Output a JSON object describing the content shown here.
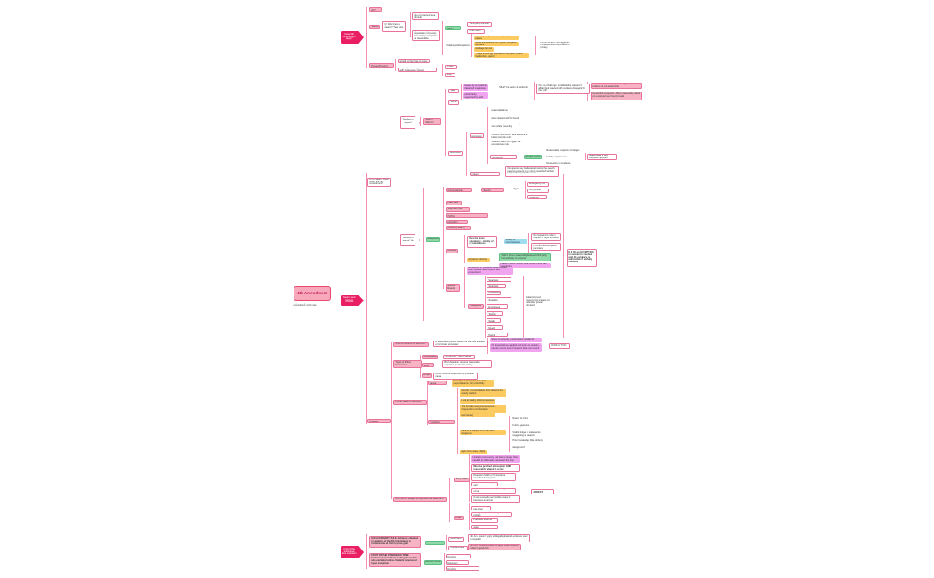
{
  "nodes": [
    {
      "text": "4th Amendment",
      "style": "root"
    },
    {
      "text": "Prepared by the ELOE 4th Amendment mind map",
      "style": "plain"
    },
    {
      "text": "Does 4th Amendment apply?",
      "style": "arrow"
    },
    {
      "text": "Search and Seizure Process",
      "style": "arrow"
    },
    {
      "text": "Fruit of the poisonous tree exclusion",
      "style": "arrow"
    },
    {
      "text": "Gov't Act?",
      "style": "pink"
    },
    {
      "text": "Search?",
      "style": "pink"
    },
    {
      "text": "Q: Was there a search? Two tests",
      "style": "white"
    },
    {
      "text": "1) Physical trespass into a protected area (Jones)",
      "style": "white"
    },
    {
      "text": "2) REP - subjective expectation of privacy that society recognizes as reasonable",
      "style": "white"
    },
    {
      "text": "Katz test (REP)",
      "style": "green"
    },
    {
      "text": "Third-party doctrine",
      "style": "white"
    },
    {
      "text": "Open fields",
      "style": "white"
    },
    {
      "text": "Challenges/Exceptions",
      "style": "plain"
    },
    {
      "text": "Sniffs by drug-detection dogs in public places",
      "style": "yellow"
    },
    {
      "text": "Aerial surveillance from public navigable airspace",
      "style": "yellow"
    },
    {
      "text": "Garbage left out",
      "style": "yellow"
    },
    {
      "text": "Things knowingly exposed to the public (voice, handwriting, paint)",
      "style": "yellow"
    },
    {
      "text": "Fourth Amend. not triggered - no reasonable expectation of privacy",
      "style": "plain"
    },
    {
      "text": "Seizure of Person/Property",
      "style": "pink"
    },
    {
      "text": "Person: reasonable person would not feel free to leave",
      "style": "white"
    },
    {
      "text": "Property: meaningful interference with possessory interest",
      "style": "white"
    },
    {
      "text": "Arrest",
      "style": "white"
    },
    {
      "text": "Stop",
      "style": "white"
    },
    {
      "text": "Is the search valid under the 4th Amendment?",
      "style": "white"
    },
    {
      "text": "Was there a warrant? Yes",
      "style": "oarrow"
    },
    {
      "text": "Search Warrant",
      "style": "pink"
    },
    {
      "text": "Valid",
      "style": "white"
    },
    {
      "text": "Issued by a neutral & detached magistrate",
      "style": "magenta"
    },
    {
      "text": "Probable cause and particularity, supported by oath",
      "style": "magenta"
    },
    {
      "text": "MUST be sworn & particular",
      "style": "plain"
    },
    {
      "text": "On any challenge: invalidate the warrant if affiant lied or acted with reckless disregard for the truth",
      "style": "white"
    },
    {
      "text": "If the warrant is facially invalid, good faith reliance is not reasonable",
      "style": "pink"
    },
    {
      "text": "Good faith exception: officer reasonably relied on a warrant later found invalid",
      "style": "pink"
    },
    {
      "text": "Scope",
      "style": "white"
    },
    {
      "text": "Execution",
      "style": "white"
    },
    {
      "text": "Knock & announce",
      "style": "white"
    },
    {
      "text": "Must be executed within a reasonable time",
      "style": "plain"
    },
    {
      "text": "Search limited to places where the items listed could be found",
      "style": "plain"
    },
    {
      "text": "Officers may seize items in plain view while executing",
      "style": "plain"
    },
    {
      "text": "Officers must knock and announce before forcible entry",
      "style": "plain"
    },
    {
      "text": "Violation does not trigger the exclusionary rule",
      "style": "plain"
    },
    {
      "text": "No knock-and-announce",
      "style": "white"
    },
    {
      "text": "EXCEPTIONS",
      "style": "green"
    },
    {
      "text": "Reasonable suspicion of danger",
      "style": "plain"
    },
    {
      "text": "Futility requirement",
      "style": "plain"
    },
    {
      "text": "Destruction of evidence",
      "style": "plain"
    },
    {
      "text": "Reasonable if any exception applies",
      "style": "white"
    },
    {
      "text": "Detention of those present",
      "style": "white"
    },
    {
      "text": "Occupants may be detained during the search; persons present may not be searched without independent probable cause",
      "style": "white"
    },
    {
      "text": "Was there a warrant? No",
      "style": "oarrow"
    },
    {
      "text": "Exceptions",
      "style": "green"
    },
    {
      "text": "Exigent Circumstances",
      "style": "pink"
    },
    {
      "text": "Warrantless Search",
      "style": "pink"
    },
    {
      "text": "Types",
      "style": "plain"
    },
    {
      "text": "Emergency aid",
      "style": "white"
    },
    {
      "text": "Hot pursuit",
      "style": "white"
    },
    {
      "text": "Evanescent evidence",
      "style": "white"
    },
    {
      "text": "Plain view",
      "style": "pink"
    },
    {
      "text": "Stop and frisk",
      "style": "pink"
    },
    {
      "text": "Search incident to lawful arrest (SITA)",
      "style": "pink"
    },
    {
      "text": "Automobile exception",
      "style": "pink"
    },
    {
      "text": "Inventory search",
      "style": "pink"
    },
    {
      "text": "Consent",
      "style": "pink"
    },
    {
      "text": "Must be given voluntarily - totality of circumstances",
      "style": "bold"
    },
    {
      "text": "Totality of circumstances",
      "style": "blue"
    },
    {
      "text": "Not required to inform suspect of right to refuse",
      "style": "white"
    },
    {
      "text": "Third party consent - common authority over premises",
      "style": "white"
    },
    {
      "text": "Apparent authority",
      "style": "yellow"
    },
    {
      "text": "Valid if officer reasonably believed third party had authority to consent",
      "style": "green"
    },
    {
      "text": "Invalid if officer should have known there was no authority",
      "style": "magenta"
    },
    {
      "text": "Special Needs",
      "style": "pink"
    },
    {
      "text": "No warrant or probable cause needed when special need beyond law enforcement",
      "style": "magenta"
    },
    {
      "text": "Categories",
      "style": "pink"
    },
    {
      "text": "Administrative Searches",
      "style": "white"
    },
    {
      "text": "Border Searches",
      "style": "white"
    },
    {
      "text": "Checkpoints",
      "style": "white"
    },
    {
      "text": "Public School Students",
      "style": "white"
    },
    {
      "text": "Public Employees",
      "style": "white"
    },
    {
      "text": "Drug Testing",
      "style": "white"
    },
    {
      "text": "DNA Swabs",
      "style": "white"
    },
    {
      "text": "Special Needs",
      "style": "white"
    },
    {
      "text": "Probation & Parole",
      "style": "white"
    },
    {
      "text": "Balancing test: government interest vs. individual privacy intrusion",
      "style": "plain"
    },
    {
      "text": "If it fits an EXCEPTION, no warrant is needed and the evidence is admissible if lawfully obtained",
      "style": "bold"
    },
    {
      "text": "IV Search Analysis",
      "style": "pink"
    },
    {
      "text": "What is required for seizures?",
      "style": "pink"
    },
    {
      "text": "A reasonable person would not feel free to leave or terminate encounter",
      "style": "white"
    },
    {
      "text": "Show of authority + submission (Hodari D.)",
      "style": "magenta"
    },
    {
      "text": "Or physical force applied with intent to restrain - seizure occurs even if suspect does not submit",
      "style": "magenta"
    },
    {
      "text": "LOOK AT TOC",
      "style": "white"
    },
    {
      "text": "Types of Police Encounters",
      "style": "pink"
    },
    {
      "text": "Conversation",
      "style": "pink"
    },
    {
      "text": "No seizure - free to leave",
      "style": "white"
    },
    {
      "text": "Terry Stop",
      "style": "pink"
    },
    {
      "text": "Brief detention requires reasonable suspicion of criminal activity",
      "style": "white"
    },
    {
      "text": "Arrest",
      "style": "pink"
    },
    {
      "text": "Arrest must be supported by probable cause",
      "style": "white"
    },
    {
      "text": "Proper basis of suspicion",
      "style": "pink"
    },
    {
      "text": "Probable cause",
      "style": "pink"
    },
    {
      "text": "More than a hunch but less than preponderance; fair probability",
      "style": "yellow"
    },
    {
      "text": "Reasonable Suspicion",
      "style": "pink"
    },
    {
      "text": "Specific and articulable facts that criminal activity is afoot",
      "style": "yellow"
    },
    {
      "text": "Look at totality of circumstances",
      "style": "yellow"
    },
    {
      "text": "Tips from an anonymous source + independent corroboration",
      "style": "yellow"
    },
    {
      "text": "Officers may rely on experience and training",
      "style": "yellow"
    },
    {
      "text": "Factors to support RS of armed & dangerous",
      "style": "yellow"
    },
    {
      "text": "High crime area + flight",
      "style": "yellow"
    },
    {
      "text": "Nature of crime",
      "style": "plain"
    },
    {
      "text": "Furtive gestures",
      "style": "plain"
    },
    {
      "text": "Visible bulge or statements suggesting a weapon",
      "style": "plain"
    },
    {
      "text": "Prior knowledge (like robbery)",
      "style": "plain"
    },
    {
      "text": "Is the person near a gun or dangerous?",
      "style": "plain"
    },
    {
      "text": "Who can be subject to stop and frisk detention?",
      "style": "pink"
    },
    {
      "text": "Terry Stops",
      "style": "pink"
    },
    {
      "text": "Limited to temporary and last no longer than needed to effectuate purpose of the stop",
      "style": "magenta"
    },
    {
      "text": "Must be justified at inception AND reasonably related in scope",
      "style": "bold"
    },
    {
      "text": "Detention for ID or 5 minutes is considered temporary",
      "style": "white"
    },
    {
      "text": "Can ask to identify self",
      "style": "white"
    },
    {
      "text": "Can order drivers and passengers out of car",
      "style": "white"
    },
    {
      "text": "If stop exceeds permissible scope it becomes an arrest",
      "style": "white"
    },
    {
      "text": "Frisk",
      "style": "pink"
    },
    {
      "text": "Outer clothing pat-down",
      "style": "white"
    },
    {
      "text": "Taking weapon from subject, only to protect",
      "style": "white"
    },
    {
      "text": "Plain feel doctrine",
      "style": "white"
    },
    {
      "text": "Protective sweep of area",
      "style": "white"
    },
    {
      "text": "STOP VS. ARREST",
      "style": "bold"
    },
    {
      "text": "EXCLUSIONARY RULE: Evidence obtained in violation of the 4th Amendment is inadmissible at trial to prove guilt",
      "style": "pinkbold"
    },
    {
      "text": "EXCEPTIONS",
      "style": "green"
    },
    {
      "text": "Good faith",
      "style": "white"
    },
    {
      "text": "Impeachment",
      "style": "white"
    },
    {
      "text": "4th Am. doesn't apply to illegally obtained evidence used to impeach",
      "style": "white"
    },
    {
      "text": "4th Am. exclusion does not apply when officers relied in good faith",
      "style": "pink"
    },
    {
      "text": "FRUIT OF THE POISONOUS TREE: Evidence derived from an illegal search is also excluded unless the taint is removed by an exception",
      "style": "pinkbold"
    },
    {
      "text": "EXCEPTIONS",
      "style": "green"
    },
    {
      "text": "Attenuation Doctrine",
      "style": "white"
    },
    {
      "text": "Inevitable Discovery",
      "style": "white"
    },
    {
      "text": "Independent Source Doctrine",
      "style": "white"
    }
  ]
}
